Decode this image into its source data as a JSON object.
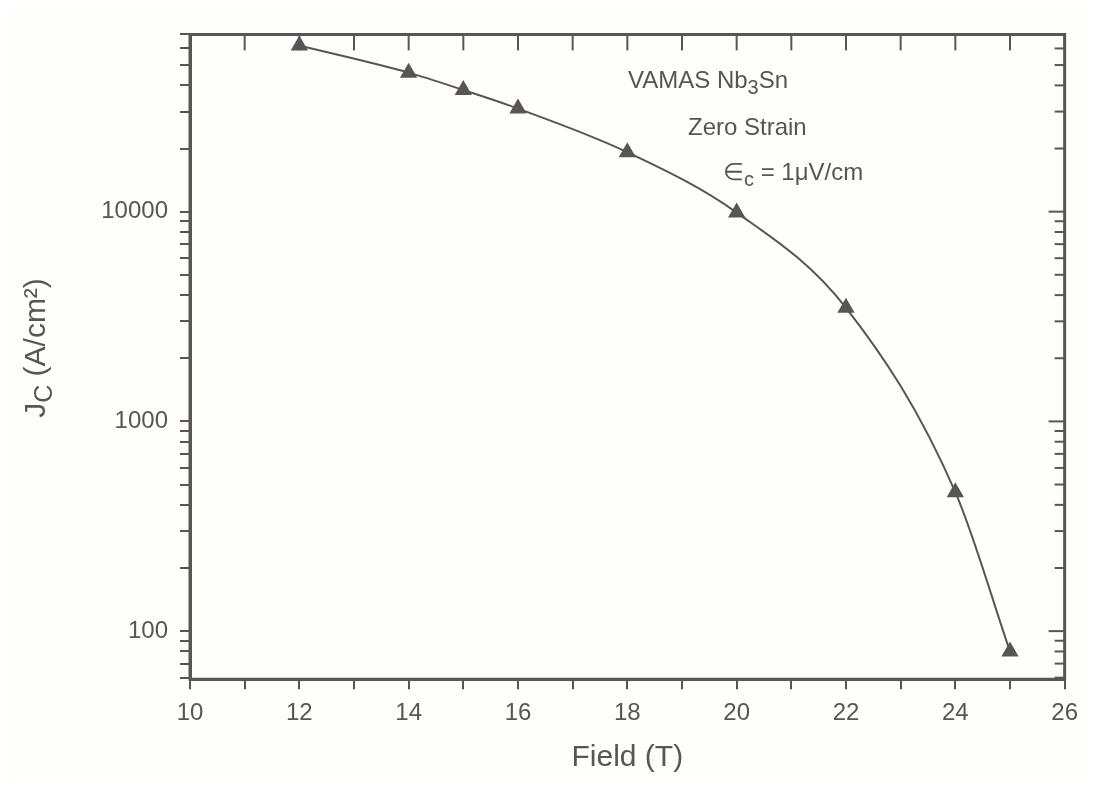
{
  "chart_data": {
    "type": "line",
    "xlabel": "Field (T)",
    "ylabel": "J$_{C}$ (A/cm²)",
    "annotations": [
      "VAMAS Nb$_{3}$Sn",
      "Zero Strain",
      "∈$_{c}$ = 1μV/cm"
    ],
    "x": [
      12,
      14,
      15,
      16,
      18,
      20,
      22,
      24,
      25
    ],
    "series": [
      {
        "color": "#5a5555",
        "values": [
          62000,
          46000,
          38000,
          31000,
          19200,
          9900,
          3480,
          460,
          80
        ]
      }
    ],
    "log": "y",
    "marker": "triangle",
    "line_style": "solid",
    "grid": false,
    "legend": false,
    "xlim": [
      10,
      26
    ],
    "xticks": [
      10,
      {
        "value": 11,
        "label": null
      },
      12,
      {
        "value": 13,
        "label": null
      },
      14,
      {
        "value": 15,
        "label": null
      },
      16,
      {
        "value": 17,
        "label": null
      },
      18,
      {
        "value": 19,
        "label": null
      },
      20,
      {
        "value": 21,
        "label": null
      },
      22,
      {
        "value": 23,
        "label": null
      },
      24,
      {
        "value": 25,
        "label": null
      },
      26
    ],
    "ylim": [
      59,
      70000
    ],
    "yticks": [
      {
        "value": 60,
        "label": null
      },
      {
        "value": 70,
        "label": null
      },
      {
        "value": 80,
        "label": null
      },
      {
        "value": 90,
        "label": null
      },
      100,
      {
        "value": 200,
        "label": null
      },
      {
        "value": 300,
        "label": null
      },
      {
        "value": 400,
        "label": null
      },
      {
        "value": 500,
        "label": null
      },
      {
        "value": 600,
        "label": null
      },
      {
        "value": 700,
        "label": null
      },
      {
        "value": 800,
        "label": null
      },
      {
        "value": 900,
        "label": null
      },
      1000,
      {
        "value": 2000,
        "label": null
      },
      {
        "value": 3000,
        "label": null
      },
      {
        "value": 4000,
        "label": null
      },
      {
        "value": 5000,
        "label": null
      },
      {
        "value": 6000,
        "label": null
      },
      {
        "value": 7000,
        "label": null
      },
      {
        "value": 8000,
        "label": null
      },
      {
        "value": 9000,
        "label": null
      },
      10000,
      {
        "value": 20000,
        "label": null
      },
      {
        "value": 30000,
        "label": null
      },
      {
        "value": 40000,
        "label": null
      },
      {
        "value": 50000,
        "label": null
      },
      {
        "value": 60000,
        "label": null
      },
      {
        "value": 70000,
        "label": null
      }
    ]
  }
}
